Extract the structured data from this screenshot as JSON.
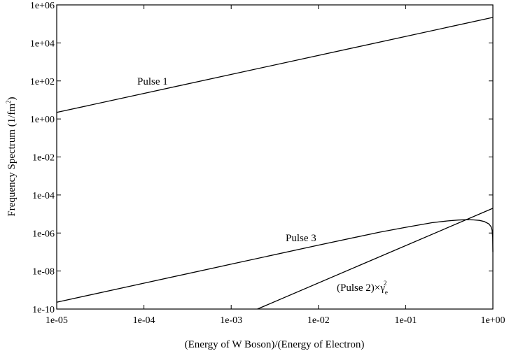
{
  "chart_data": {
    "type": "line",
    "title": "",
    "xlabel": "(Energy of W Boson)/(Energy of Electron)",
    "ylabel_main": "Frequency Spectrum (1/fm",
    "ylabel_sup": "2",
    "ylabel_close": ")",
    "x_scale": "log",
    "y_scale": "log",
    "xlim": [
      1e-05,
      1
    ],
    "ylim": [
      1e-10,
      1000000.0
    ],
    "x_ticks": [
      {
        "value": 1e-05,
        "label": "1e-05"
      },
      {
        "value": 0.0001,
        "label": "1e-04"
      },
      {
        "value": 0.001,
        "label": "1e-03"
      },
      {
        "value": 0.01,
        "label": "1e-02"
      },
      {
        "value": 0.1,
        "label": "1e-01"
      },
      {
        "value": 1,
        "label": "1e+00"
      }
    ],
    "y_ticks": [
      {
        "value": 1e-10,
        "label": "1e-10"
      },
      {
        "value": 1e-08,
        "label": "1e-08"
      },
      {
        "value": 1e-06,
        "label": "1e-06"
      },
      {
        "value": 0.0001,
        "label": "1e-04"
      },
      {
        "value": 0.01,
        "label": "1e-02"
      },
      {
        "value": 1,
        "label": "1e+00"
      },
      {
        "value": 100,
        "label": "1e+02"
      },
      {
        "value": 10000,
        "label": "1e+04"
      },
      {
        "value": 1000000,
        "label": "1e+06"
      }
    ],
    "grid": false,
    "legend": "none",
    "series": [
      {
        "label_text": "Pulse 1",
        "x": [
          1e-05,
          1
        ],
        "y": [
          2.2,
          220000
        ]
      },
      {
        "label_text": "Pulse 3",
        "x": [
          1e-05,
          0.0001,
          0.001,
          0.01,
          0.05,
          0.1,
          0.2,
          0.3,
          0.4,
          0.5,
          0.6,
          0.7,
          0.8,
          0.9,
          0.95,
          0.98,
          0.995,
          1
        ],
        "y": [
          2.3e-10,
          2.3e-09,
          2.3e-08,
          2.3e-07,
          1.1e-06,
          2e-06,
          3.5e-06,
          4.3e-06,
          4.8e-06,
          5e-06,
          4.9e-06,
          4.6e-06,
          4e-06,
          3e-06,
          2.2e-06,
          1.4e-06,
          6e-07,
          1e-07
        ]
      },
      {
        "label_text": "(Pulse 2)×γ",
        "label_sub": "e",
        "label_sup": "2",
        "x": [
          0.002,
          1
        ],
        "y": [
          1e-10,
          2e-05
        ]
      }
    ]
  }
}
